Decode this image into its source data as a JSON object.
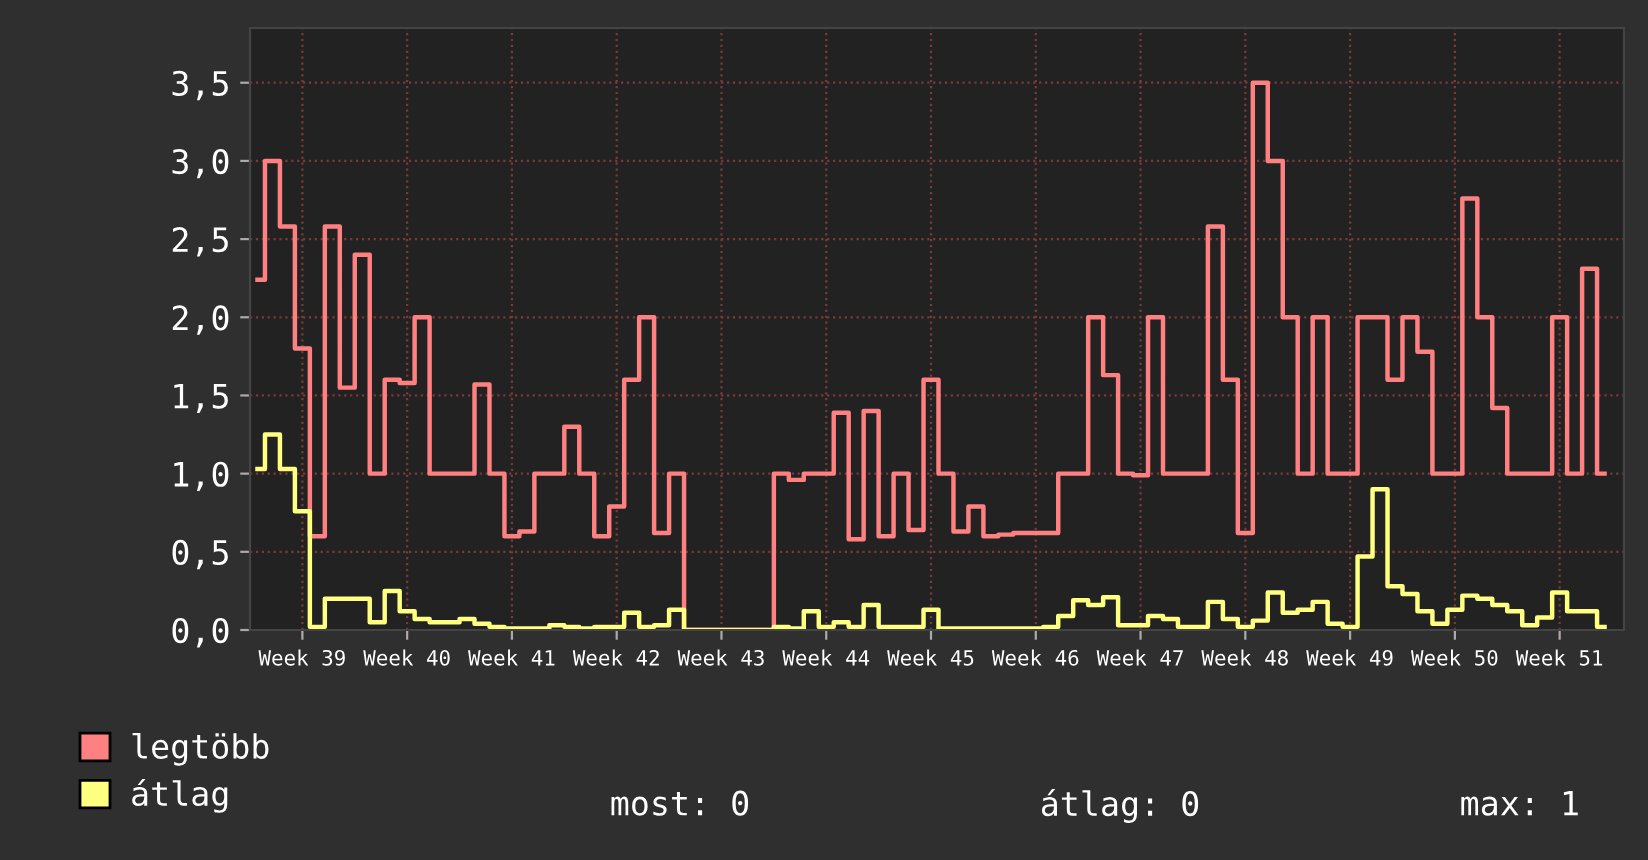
{
  "chart_data": {
    "type": "step",
    "categories": [
      null,
      null,
      null,
      "Week 39",
      null,
      null,
      null,
      null,
      null,
      null,
      "Week 40",
      null,
      null,
      null,
      null,
      null,
      null,
      "Week 41",
      null,
      null,
      null,
      null,
      null,
      null,
      "Week 42",
      null,
      null,
      null,
      null,
      null,
      null,
      "Week 43",
      null,
      null,
      null,
      null,
      null,
      null,
      "Week 44",
      null,
      null,
      null,
      null,
      null,
      null,
      "Week 45",
      null,
      null,
      null,
      null,
      null,
      null,
      "Week 46",
      null,
      null,
      null,
      null,
      null,
      null,
      "Week 47",
      null,
      null,
      null,
      null,
      null,
      null,
      "Week 48",
      null,
      null,
      null,
      null,
      null,
      null,
      "Week 49",
      null,
      null,
      null,
      null,
      null,
      null,
      "Week 50",
      null,
      null,
      null,
      null,
      null,
      null,
      "Week 51",
      null,
      null,
      null
    ],
    "ylim": [
      0,
      3.85
    ],
    "yticks": [
      {
        "value": 0,
        "label": "0,0"
      },
      {
        "value": 0.5,
        "label": "0,5"
      },
      {
        "value": 1,
        "label": "1,0"
      },
      {
        "value": 1.5,
        "label": "1,5"
      },
      {
        "value": 2,
        "label": "2,0"
      },
      {
        "value": 2.5,
        "label": "2,5"
      },
      {
        "value": 3,
        "label": "3,0"
      },
      {
        "value": 3.5,
        "label": "3,5"
      }
    ],
    "grid": true,
    "legend": "bottom",
    "series": [
      {
        "name": "legtöbb",
        "color": "#ff8080",
        "values": [
          2.24,
          3.0,
          2.58,
          1.8,
          0.6,
          2.58,
          1.55,
          2.4,
          1.0,
          1.6,
          1.58,
          2.0,
          1.0,
          1.0,
          1.0,
          1.57,
          1.0,
          0.6,
          0.63,
          1.0,
          1.0,
          1.3,
          1.0,
          0.6,
          0.79,
          1.6,
          2.0,
          0.62,
          1.0,
          0,
          0,
          0,
          0,
          0,
          0,
          1.0,
          0.96,
          1.0,
          1.0,
          1.39,
          0.58,
          1.4,
          0.6,
          1.0,
          0.64,
          1.6,
          1.0,
          0.63,
          0.79,
          0.6,
          0.61,
          0.62,
          0.62,
          0.62,
          1.0,
          1.0,
          2.0,
          1.63,
          1.0,
          0.99,
          2.0,
          1.0,
          1.0,
          1.0,
          2.58,
          1.6,
          0.62,
          3.5,
          3.0,
          2.0,
          1.0,
          2.0,
          1.0,
          1.0,
          2.0,
          2.0,
          1.6,
          2.0,
          1.78,
          1.0,
          1.0,
          2.76,
          2.0,
          1.42,
          1.0,
          1.0,
          1.0,
          2.0,
          1.0,
          2.31,
          1.0
        ]
      },
      {
        "name": "átlag",
        "color": "#ffff80",
        "values": [
          1.03,
          1.25,
          1.03,
          0.76,
          0.02,
          0.2,
          0.2,
          0.2,
          0.05,
          0.25,
          0.12,
          0.07,
          0.05,
          0.05,
          0.07,
          0.04,
          0.02,
          0.01,
          0.01,
          0.01,
          0.03,
          0.02,
          0.01,
          0.02,
          0.02,
          0.11,
          0.02,
          0.03,
          0.13,
          0,
          0,
          0,
          0,
          0,
          0,
          0.02,
          0.01,
          0.12,
          0.02,
          0.05,
          0.02,
          0.16,
          0.02,
          0.02,
          0.02,
          0.13,
          0.01,
          0.01,
          0.01,
          0.01,
          0.01,
          0.01,
          0.01,
          0.02,
          0.09,
          0.19,
          0.16,
          0.21,
          0.03,
          0.03,
          0.09,
          0.07,
          0.02,
          0.02,
          0.18,
          0.07,
          0.02,
          0.06,
          0.24,
          0.11,
          0.13,
          0.18,
          0.04,
          0.02,
          0.47,
          0.9,
          0.28,
          0.23,
          0.12,
          0.04,
          0.13,
          0.22,
          0.2,
          0.16,
          0.12,
          0.03,
          0.08,
          0.24,
          0.12,
          0.12,
          0.02
        ]
      }
    ],
    "annotations": [
      "most: 0",
      "átlag: 0",
      "max: 1"
    ]
  }
}
